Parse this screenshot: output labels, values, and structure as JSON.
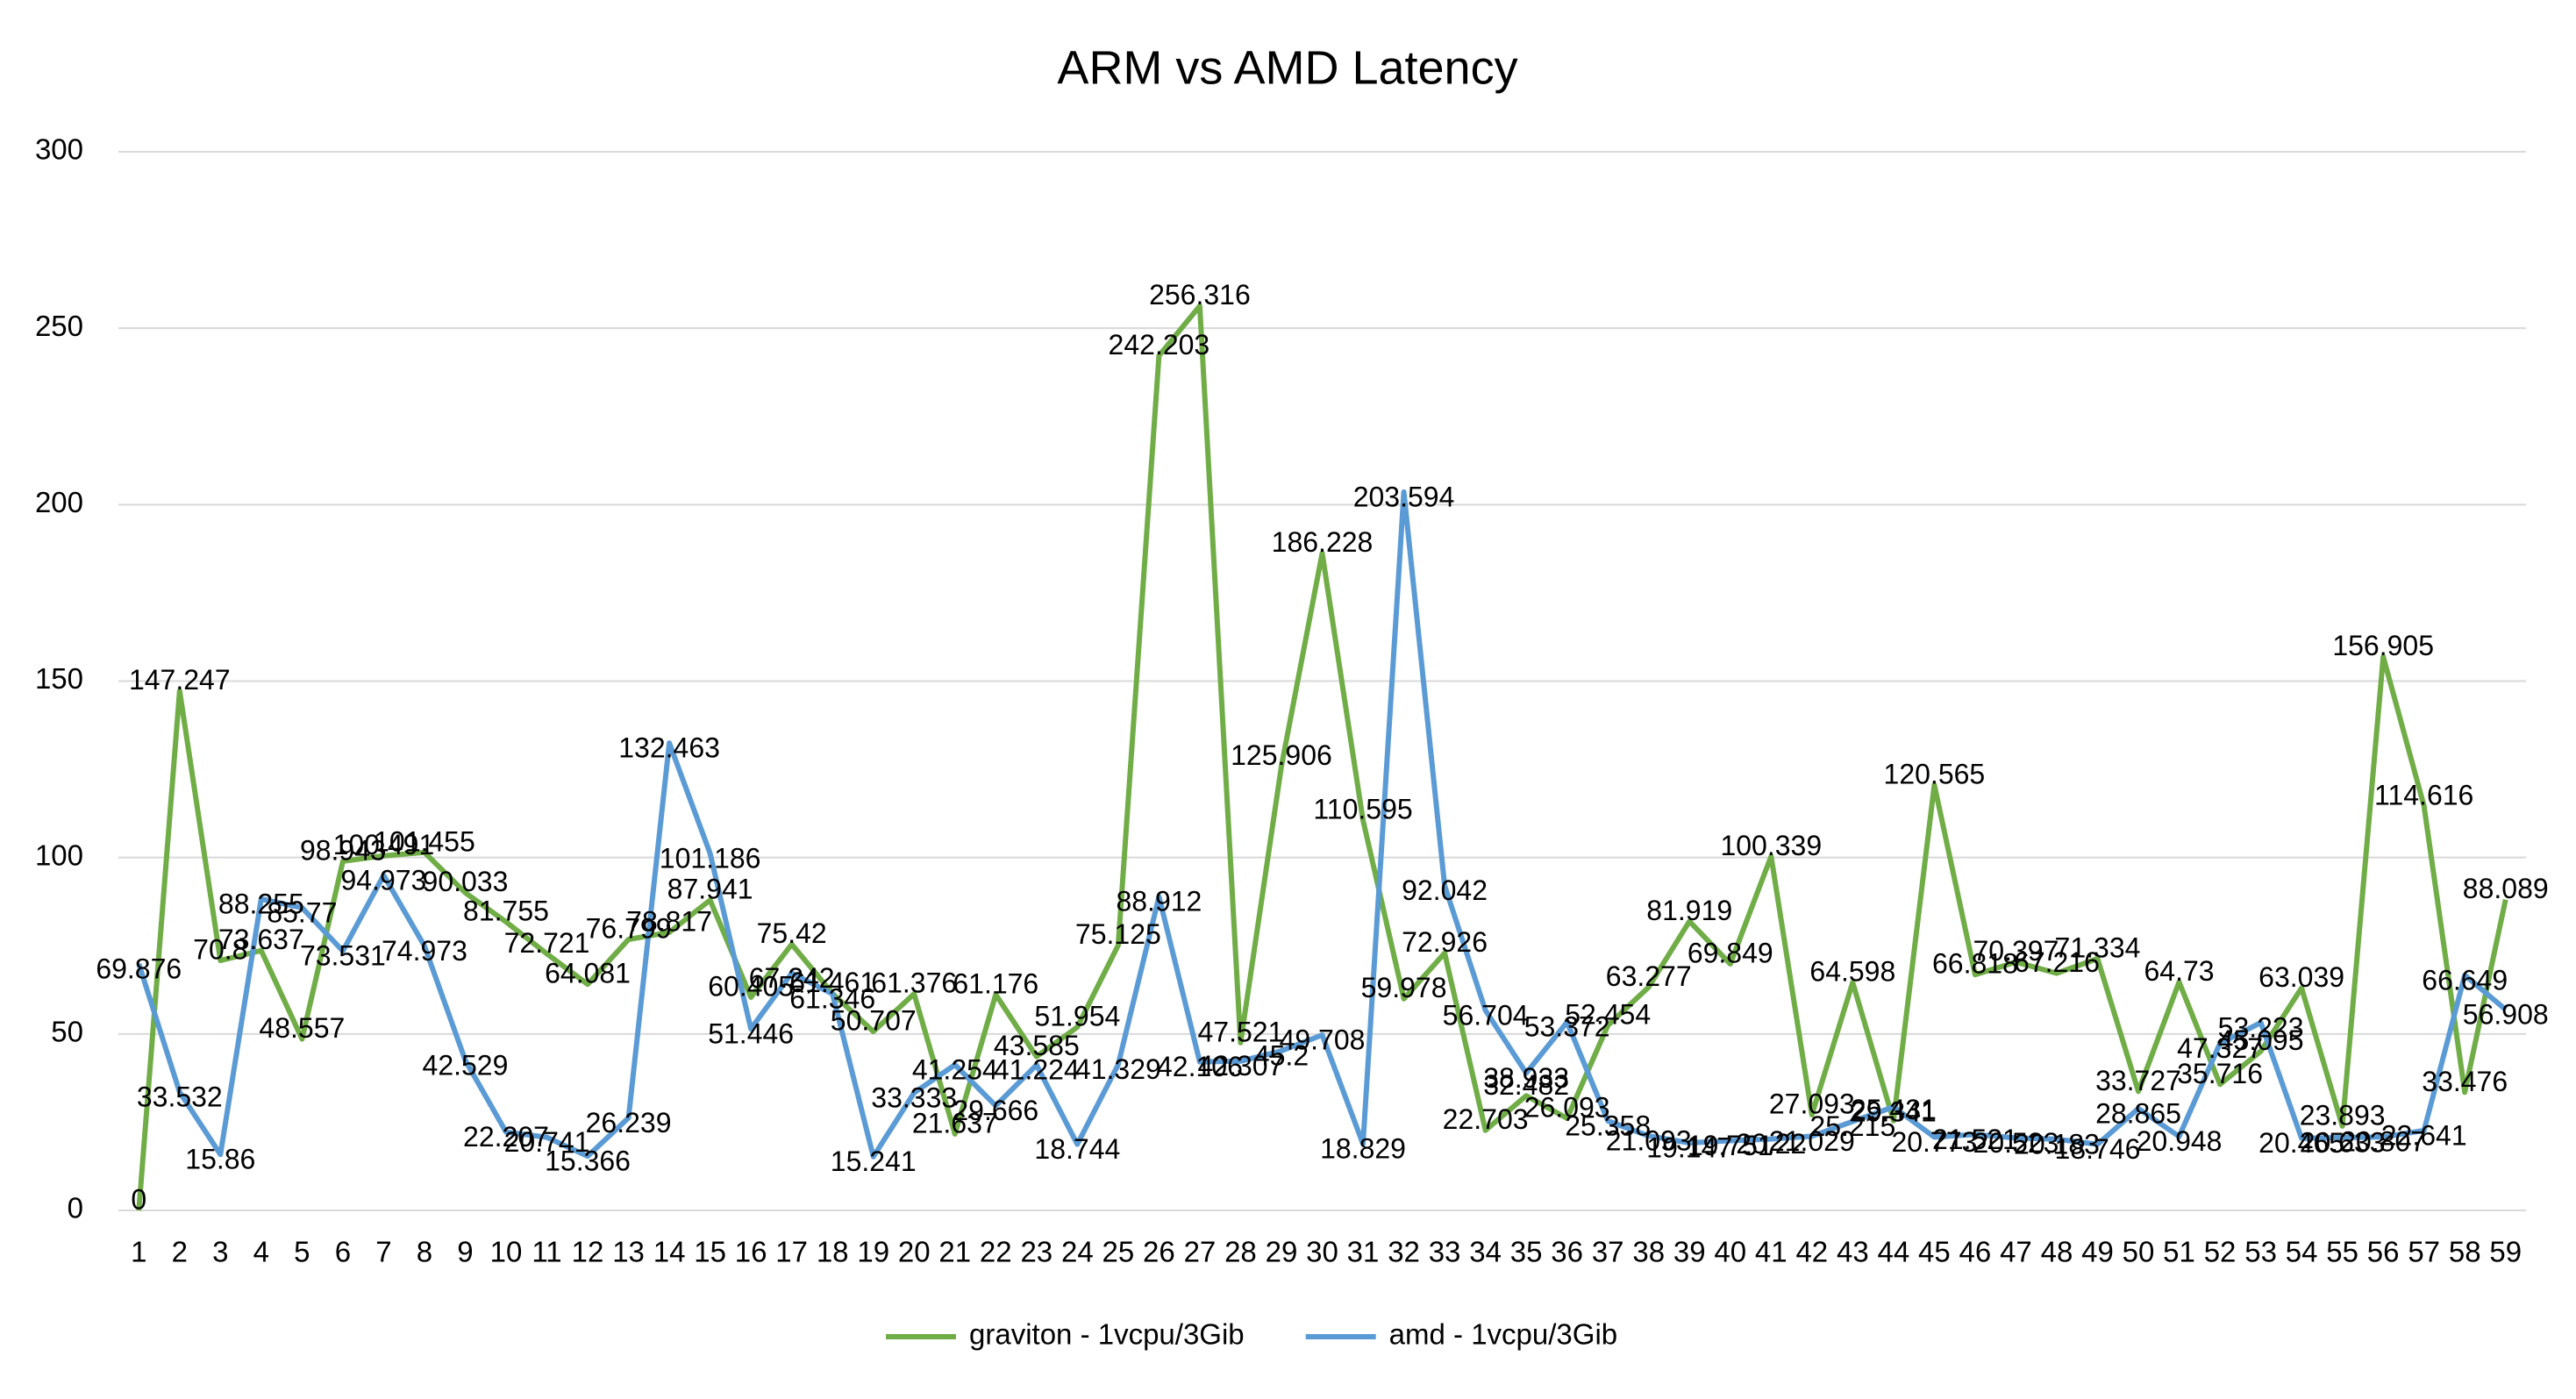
{
  "chart_data": {
    "type": "line",
    "title": "ARM vs AMD Latency",
    "categories": [
      1,
      2,
      3,
      4,
      5,
      6,
      7,
      8,
      9,
      10,
      11,
      12,
      13,
      14,
      15,
      16,
      17,
      18,
      19,
      20,
      21,
      22,
      23,
      24,
      25,
      26,
      27,
      28,
      29,
      30,
      31,
      32,
      33,
      34,
      35,
      36,
      37,
      38,
      39,
      40,
      41,
      42,
      43,
      44,
      45,
      46,
      47,
      48,
      49,
      50,
      51,
      52,
      53,
      54,
      55,
      56,
      57,
      58,
      59
    ],
    "series": [
      {
        "name": "graviton - 1vcpu/3Gib",
        "color": "#70ad47",
        "values": [
          0,
          147.247,
          70.8,
          73.637,
          48.557,
          98.943,
          100.491,
          101.455,
          90.033,
          81.755,
          72.721,
          64.081,
          76.799,
          78.817,
          87.941,
          60.405,
          75.42,
          61.461,
          50.707,
          61.376,
          21.637,
          61.176,
          43.585,
          51.954,
          75.125,
          242.203,
          256.316,
          47.521,
          125.906,
          186.228,
          110.595,
          59.978,
          72.926,
          22.703,
          32.482,
          26.093,
          52.454,
          63.277,
          81.919,
          69.849,
          100.339,
          27.093,
          64.598,
          25.431,
          120.565,
          66.818,
          70.397,
          67.216,
          71.334,
          33.727,
          64.73,
          35.716,
          45.095,
          63.039,
          23.893,
          156.905,
          114.616,
          33.476,
          88.089
        ]
      },
      {
        "name": "amd - 1vcpu/3Gib",
        "color": "#5b9bd5",
        "values": [
          69.876,
          33.532,
          15.86,
          88.255,
          85.77,
          73.531,
          94.973,
          74.973,
          42.529,
          22.207,
          20.741,
          15.366,
          26.239,
          132.463,
          101.186,
          51.446,
          67.242,
          61.346,
          15.241,
          33.333,
          41.254,
          29.666,
          41.224,
          18.744,
          41.329,
          88.912,
          42.106,
          42.307,
          45.2,
          49.708,
          18.829,
          203.594,
          92.042,
          56.704,
          38.933,
          53.372,
          25.358,
          21.093,
          19.147,
          19.751,
          20.22,
          21.029,
          25.215,
          29.341,
          20.773,
          21.521,
          20.523,
          20.183,
          18.746,
          28.865,
          20.948,
          47.327,
          53.223,
          20.465,
          20.633,
          20.807,
          22.641,
          66.649,
          56.908
        ]
      }
    ],
    "ylim": [
      0,
      300
    ],
    "yticks": [
      0,
      50,
      100,
      150,
      200,
      250,
      300
    ],
    "grid": true,
    "legend": "bottom"
  }
}
